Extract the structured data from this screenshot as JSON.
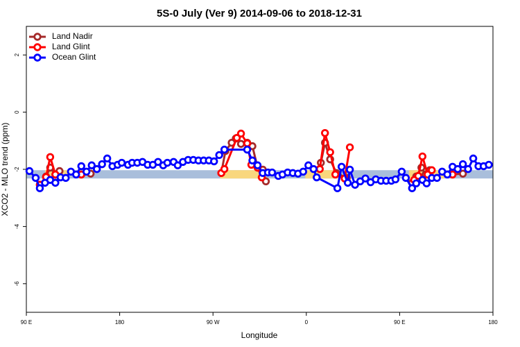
{
  "chart_data": {
    "type": "line",
    "title": "5S-0 July (Ver 9)   2014-09-06 to 2018-12-31",
    "xlabel": "Longitude",
    "ylabel": "XCO2 - MLO trend (ppm)",
    "xlim": [
      90,
      540
    ],
    "ylim": [
      -7,
      3
    ],
    "xticks": [
      {
        "value": 90,
        "label": "90 E"
      },
      180,
      {
        "value": 270,
        "label": "90 W"
      },
      {
        "value": 360,
        "label": "0"
      },
      {
        "value": 450,
        "label": "90 E"
      },
      {
        "value": 540,
        "label": "180"
      }
    ],
    "yticks": [
      2,
      0,
      -2,
      -4,
      -6
    ],
    "legend": "upper left",
    "bands": [
      {
        "color": "#a9bedb",
        "x": [
          90,
          540
        ],
        "y": [
          -2.32,
          -2.03
        ]
      },
      {
        "color": "#f9d77e",
        "x": [
          108,
          131
        ],
        "y": [
          -2.32,
          -2.03
        ]
      },
      {
        "color": "#f9d77e",
        "x": [
          277,
          321
        ],
        "y": [
          -2.32,
          -2.03
        ]
      },
      {
        "color": "#f9d77e",
        "x": [
          359,
          392
        ],
        "y": [
          -2.32,
          -2.03
        ]
      },
      {
        "color": "#f9d77e",
        "x": [
          459,
          493
        ],
        "y": [
          -2.32,
          -2.03
        ]
      }
    ],
    "series": [
      {
        "name": "Land Nadir",
        "color": "#a52a2a",
        "x": [
          103,
          109,
          113,
          118,
          122,
          null,
          143,
          152,
          null,
          278,
          282,
          288,
          292,
          297,
          303,
          308,
          313,
          318,
          321,
          null,
          374,
          378,
          383,
          389,
          399,
          null,
          462,
          466,
          471,
          475,
          479,
          null,
          501,
          511
        ],
        "values": [
          -2.54,
          -2.25,
          -1.94,
          -2.18,
          -2.06,
          null,
          -2.18,
          -2.15,
          null,
          -2.13,
          -1.36,
          -1.07,
          -0.92,
          -1.11,
          -1.07,
          -1.19,
          -1.94,
          -2.01,
          -2.42,
          null,
          -1.77,
          -1.07,
          -1.65,
          -2.13,
          -2.3,
          null,
          -2.47,
          -2.25,
          -1.94,
          -2.18,
          -2.03,
          null,
          -2.18,
          -2.15
        ]
      },
      {
        "name": "Land Glint",
        "color": "#ff0000",
        "x": [
          103,
          109,
          113,
          118,
          null,
          143,
          null,
          278,
          281,
          293,
          297,
          303,
          307,
          313,
          317,
          null,
          373,
          378,
          383,
          388,
          397,
          402,
          null,
          464,
          468,
          472,
          477,
          481,
          null,
          501
        ],
        "values": [
          -2.54,
          -2.27,
          -1.57,
          -2.18,
          null,
          -2.18,
          null,
          -2.13,
          -1.99,
          -0.9,
          -0.75,
          -1.09,
          -1.84,
          -1.94,
          -2.28,
          null,
          -1.99,
          -0.73,
          -1.4,
          -2.18,
          -2.32,
          -1.23,
          null,
          -2.37,
          -2.23,
          -1.55,
          -2.18,
          -2.03,
          null,
          -2.18
        ]
      },
      {
        "name": "Ocean Glint",
        "color": "#0000ff",
        "x": [
          93,
          99,
          103,
          108,
          113,
          118,
          123,
          128,
          133,
          138,
          143,
          148,
          153,
          158,
          163,
          168,
          173,
          178,
          182,
          188,
          192,
          197,
          202,
          207,
          212,
          217,
          222,
          226,
          232,
          236,
          241,
          246,
          251,
          256,
          261,
          266,
          271,
          276,
          281,
          303,
          308,
          313,
          318,
          323,
          327,
          333,
          337,
          342,
          347,
          352,
          357,
          362,
          367,
          370,
          390,
          394,
          400,
          402,
          407,
          412,
          417,
          422,
          427,
          432,
          437,
          442,
          446,
          452,
          456,
          462,
          466,
          472,
          476,
          481,
          486,
          491,
          496,
          501,
          506,
          511,
          516,
          521,
          526,
          531,
          536
        ],
        "values": [
          -2.06,
          -2.3,
          -2.66,
          -2.47,
          -2.37,
          -2.47,
          -2.28,
          -2.3,
          -2.08,
          -2.18,
          -1.89,
          -2.08,
          -1.86,
          -1.99,
          -1.82,
          -1.62,
          -1.89,
          -1.84,
          -1.77,
          -1.84,
          -1.77,
          -1.77,
          -1.74,
          -1.84,
          -1.84,
          -1.74,
          -1.86,
          -1.77,
          -1.74,
          -1.86,
          -1.74,
          -1.67,
          -1.67,
          -1.69,
          -1.69,
          -1.69,
          -1.72,
          -1.5,
          -1.31,
          -1.31,
          -1.69,
          -1.86,
          -2.13,
          -2.11,
          -2.11,
          -2.23,
          -2.18,
          -2.11,
          -2.13,
          -2.15,
          -2.08,
          -1.86,
          -1.99,
          -2.28,
          -2.66,
          -1.91,
          -2.47,
          -2.01,
          -2.54,
          -2.42,
          -2.32,
          -2.45,
          -2.35,
          -2.4,
          -2.4,
          -2.4,
          -2.35,
          -2.08,
          -2.3,
          -2.66,
          -2.49,
          -2.37,
          -2.49,
          -2.3,
          -2.3,
          -2.08,
          -2.18,
          -1.91,
          -1.99,
          -1.82,
          -1.99,
          -1.62,
          -1.89,
          -1.89,
          -1.84
        ]
      }
    ]
  }
}
